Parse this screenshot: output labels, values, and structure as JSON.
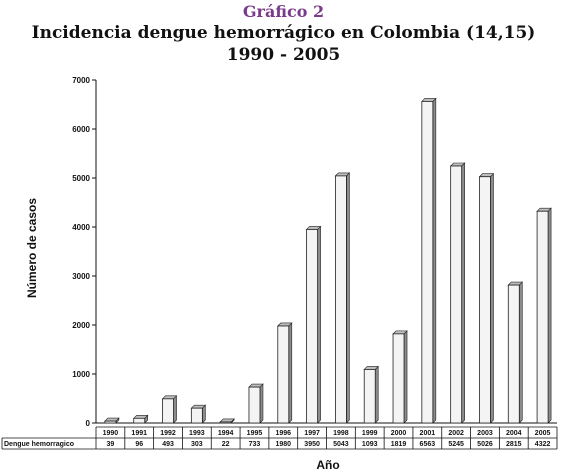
{
  "chart_data": {
    "type": "bar",
    "supertitle": "Gráfico 2",
    "title": "Incidencia dengue hemorrágico en Colombia (14,15)",
    "subtitle": "1990 - 2005",
    "xlabel": "Año",
    "ylabel": "Número de casos",
    "ylim": [
      0,
      7000
    ],
    "yticks": [
      0,
      1000,
      2000,
      3000,
      4000,
      5000,
      6000,
      7000
    ],
    "grid": false,
    "categories": [
      "1990",
      "1991",
      "1992",
      "1993",
      "1994",
      "1995",
      "1996",
      "1997",
      "1998",
      "1999",
      "2000",
      "2001",
      "2002",
      "2003",
      "2004",
      "2005"
    ],
    "series": [
      {
        "name": "Dengue hemorragico",
        "values": [
          39,
          96,
          493,
          303,
          22,
          733,
          1980,
          3950,
          5043,
          1093,
          1819,
          6563,
          5245,
          5026,
          2815,
          4322
        ]
      }
    ]
  }
}
